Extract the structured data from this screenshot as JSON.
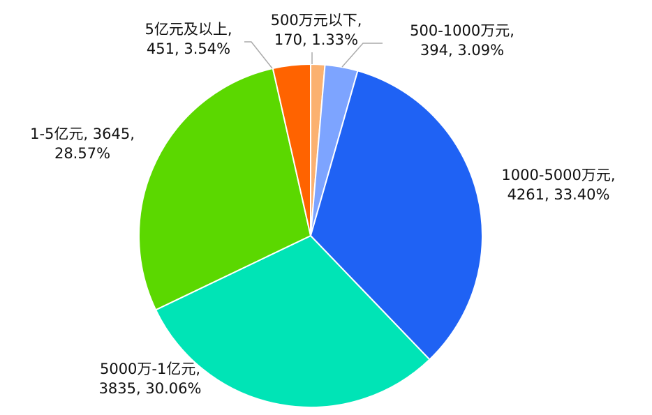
{
  "chart_data": {
    "type": "pie",
    "values": [
      170,
      394,
      4261,
      3835,
      3645,
      451
    ],
    "value_labels": [
      [
        "500万元以下,",
        "170, 1.33%"
      ],
      [
        "500-1000万元,",
        "394, 3.09%"
      ],
      [
        "1000-5000万元,",
        "4261, 33.40%"
      ],
      [
        "5000万-1亿元,",
        "3835, 30.06%"
      ],
      [
        "1-5亿元, 3645,",
        "28.57%"
      ],
      [
        "5亿元及以上,",
        "451, 3.54%"
      ]
    ],
    "colors": [
      "#fbb170",
      "#7da4ff",
      "#1f62f4",
      "#00e4b6",
      "#5bd800",
      "#ff6300"
    ]
  }
}
